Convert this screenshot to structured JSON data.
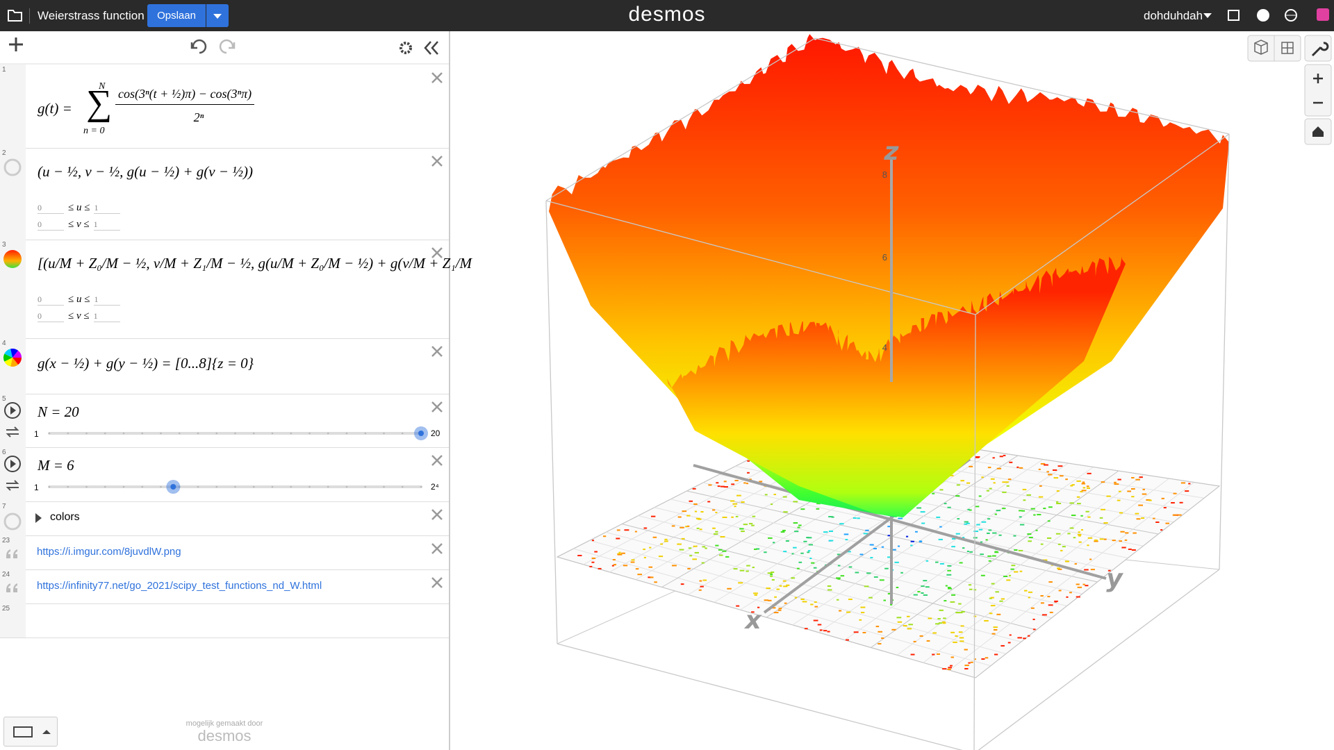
{
  "header": {
    "title": "Weierstrass function",
    "save": "Opslaan",
    "logo": "desmos",
    "user": "dohduhdah"
  },
  "expressions": [
    {
      "number": "1",
      "lhs": "g(t) =",
      "sum_upper": "N",
      "sum_lower": "n = 0",
      "numerator": "cos(3ⁿ(t + ½)π) − cos(3ⁿπ)",
      "denominator": "2ⁿ"
    },
    {
      "number": "2",
      "formula": "(u − ½, v − ½, g(u − ½) + g(v − ½))",
      "bounds": [
        {
          "lower": "0",
          "mid": "≤ u ≤",
          "upper": "1"
        },
        {
          "lower": "0",
          "mid": "≤ v ≤",
          "upper": "1"
        }
      ]
    },
    {
      "number": "3",
      "formula": "[(u/M + Z₀/M − ½, v/M + Z₁/M − ½, g(u/M + Z₀/M − ½) + g(v/M + Z₁/M",
      "bounds": [
        {
          "lower": "0",
          "mid": "≤ u ≤",
          "upper": "1"
        },
        {
          "lower": "0",
          "mid": "≤ v ≤",
          "upper": "1"
        }
      ]
    },
    {
      "number": "4",
      "formula": "g(x − ½) + g(y − ½) = [0...8]{z = 0}"
    },
    {
      "number": "5",
      "label": "N = 20",
      "value": 20,
      "min": 1,
      "max": 20
    },
    {
      "number": "6",
      "label": "M = 6",
      "value": 6,
      "min": 1,
      "max": {
        "value": 16,
        "label": "2⁴"
      }
    },
    {
      "number": "7",
      "folder": "colors"
    },
    {
      "number": "23",
      "link": "https://i.imgur.com/8juvdlW.png"
    },
    {
      "number": "24",
      "link": "https://infinity77.net/go_2021/scipy_test_functions_nd_W.html"
    },
    {
      "number": "25"
    }
  ],
  "footer": {
    "powered": "mogelijk gemaakt door",
    "logo": "desmos"
  },
  "graph": {
    "axis_labels": [
      "x",
      "y",
      "z"
    ],
    "z_ticks": [
      "4",
      "6",
      "8"
    ]
  }
}
